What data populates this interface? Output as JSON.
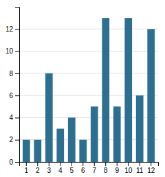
{
  "chart_data": {
    "type": "bar",
    "categories": [
      1,
      2,
      3,
      4,
      5,
      6,
      7,
      8,
      9,
      10,
      11,
      12
    ],
    "values": [
      2,
      2,
      8,
      3,
      4,
      2,
      5,
      13,
      5,
      13,
      6,
      12
    ],
    "color": "#2e6e8e",
    "ylim": [
      0,
      14
    ],
    "yticks": [
      0,
      2,
      4,
      6,
      8,
      10,
      12
    ],
    "grid": true
  }
}
